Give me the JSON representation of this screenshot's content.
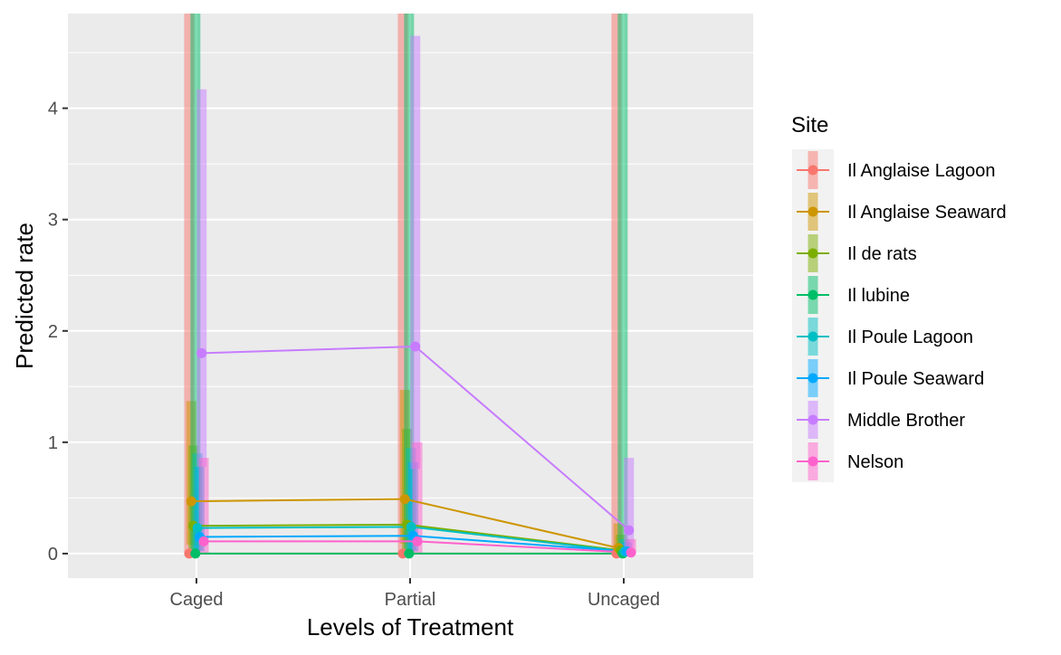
{
  "chart_data": {
    "type": "line",
    "xlabel": "Levels of Treatment",
    "ylabel": "Predicted rate",
    "categories": [
      "Caged",
      "Partial",
      "Uncaged"
    ],
    "ylim": [
      -0.22,
      4.85
    ],
    "y_ticks": [
      0,
      1,
      2,
      3,
      4
    ],
    "y_tick_labels": [
      "0",
      "1",
      "2",
      "3",
      "4"
    ],
    "grid": true,
    "legend": {
      "title": "Site",
      "position": "right"
    },
    "series": [
      {
        "name": "Il Anglaise Lagoon",
        "color": "#F8766D",
        "values": [
          0.0,
          0.0,
          0.0
        ],
        "upper": [
          4.85,
          4.85,
          4.85
        ],
        "lower": [
          0.0,
          0.0,
          0.0
        ]
      },
      {
        "name": "Il Anglaise Seaward",
        "color": "#CD9600",
        "values": [
          0.47,
          0.49,
          0.05
        ],
        "upper": [
          1.37,
          1.47,
          0.27
        ],
        "lower": [
          0.08,
          0.09,
          0.0
        ]
      },
      {
        "name": "Il de rats",
        "color": "#7CAE00",
        "values": [
          0.25,
          0.26,
          0.03
        ],
        "upper": [
          0.97,
          1.12,
          0.17
        ],
        "lower": [
          0.03,
          0.04,
          0.0
        ]
      },
      {
        "name": "Il lubine",
        "color": "#00BE67",
        "values": [
          0.0,
          0.0,
          0.0
        ],
        "upper": [
          4.85,
          4.85,
          4.85
        ],
        "lower": [
          0.0,
          0.0,
          0.0
        ]
      },
      {
        "name": "Il Poule Lagoon",
        "color": "#00BFC4",
        "values": [
          0.23,
          0.24,
          0.02
        ],
        "upper": [
          0.9,
          0.95,
          0.13
        ],
        "lower": [
          0.03,
          0.03,
          0.0
        ]
      },
      {
        "name": "Il Poule Seaward",
        "color": "#00A9FF",
        "values": [
          0.15,
          0.16,
          0.02
        ],
        "upper": [
          0.78,
          0.82,
          0.1
        ],
        "lower": [
          0.02,
          0.02,
          0.0
        ]
      },
      {
        "name": "Middle Brother",
        "color": "#C77CFF",
        "values": [
          1.8,
          1.86,
          0.21
        ],
        "upper": [
          4.17,
          4.65,
          0.86
        ],
        "lower": [
          0.78,
          0.76,
          0.05
        ]
      },
      {
        "name": "Nelson",
        "color": "#FF61CC",
        "values": [
          0.11,
          0.11,
          0.01
        ],
        "upper": [
          0.86,
          1.0,
          0.13
        ],
        "lower": [
          0.0,
          0.0,
          0.0
        ]
      }
    ]
  }
}
